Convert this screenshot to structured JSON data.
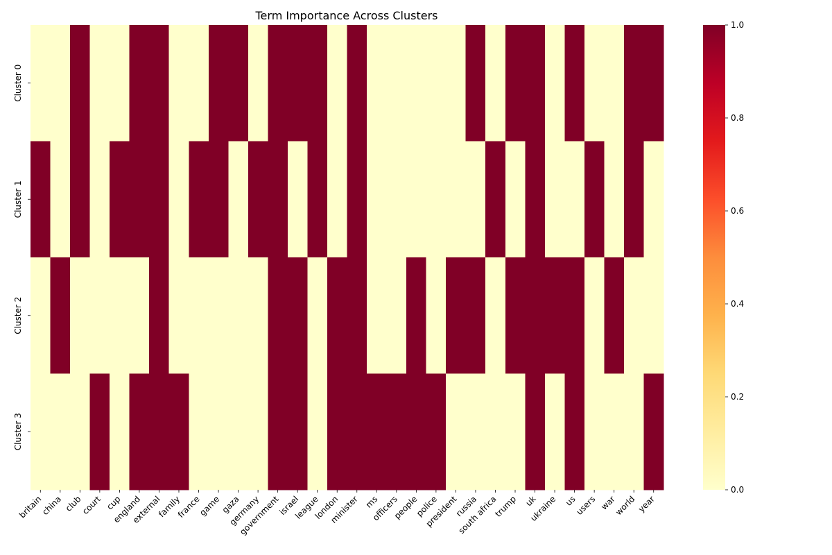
{
  "chart_data": {
    "type": "heatmap",
    "title": "Term Importance Across Clusters",
    "xlabel": "",
    "ylabel": "",
    "x_categories": [
      "britain",
      "china",
      "club",
      "court",
      "cup",
      "england",
      "external",
      "family",
      "france",
      "game",
      "gaza",
      "germany",
      "government",
      "israel",
      "league",
      "london",
      "minister",
      "ms",
      "officers",
      "people",
      "police",
      "president",
      "russia",
      "south africa",
      "trump",
      "uk",
      "ukraine",
      "us",
      "users",
      "war",
      "world",
      "year"
    ],
    "y_categories": [
      "Cluster 0",
      "Cluster 1",
      "Cluster 2",
      "Cluster 3"
    ],
    "values": [
      [
        0,
        0,
        1,
        0,
        0,
        1,
        1,
        0,
        0,
        1,
        1,
        0,
        1,
        1,
        1,
        0,
        1,
        0,
        0,
        0,
        0,
        0,
        1,
        0,
        1,
        1,
        0,
        1,
        0,
        0,
        1,
        1
      ],
      [
        1,
        0,
        1,
        0,
        1,
        1,
        1,
        0,
        1,
        1,
        0,
        1,
        1,
        0,
        1,
        0,
        1,
        0,
        0,
        0,
        0,
        0,
        0,
        1,
        0,
        1,
        0,
        0,
        1,
        0,
        1,
        0
      ],
      [
        0,
        1,
        0,
        0,
        0,
        0,
        1,
        0,
        0,
        0,
        0,
        0,
        1,
        1,
        0,
        1,
        1,
        0,
        0,
        1,
        0,
        1,
        1,
        0,
        1,
        1,
        1,
        1,
        0,
        1,
        0,
        0
      ],
      [
        0,
        0,
        0,
        1,
        0,
        1,
        1,
        1,
        0,
        0,
        0,
        0,
        1,
        1,
        0,
        1,
        1,
        1,
        1,
        1,
        1,
        0,
        0,
        0,
        0,
        1,
        0,
        1,
        0,
        0,
        0,
        1
      ]
    ],
    "colorscale": "YlOrRd",
    "colorscale_stops": [
      "#ffffcc",
      "#ffeda0",
      "#fed976",
      "#feb24c",
      "#fd8d3c",
      "#fc4e2a",
      "#e31a1c",
      "#bd0026",
      "#800026"
    ],
    "zlim": [
      0,
      1
    ],
    "colorbar_ticks": [
      "0.0",
      "0.2",
      "0.4",
      "0.6",
      "0.8",
      "1.0"
    ],
    "grid": false,
    "legend": "colorbar-right"
  }
}
